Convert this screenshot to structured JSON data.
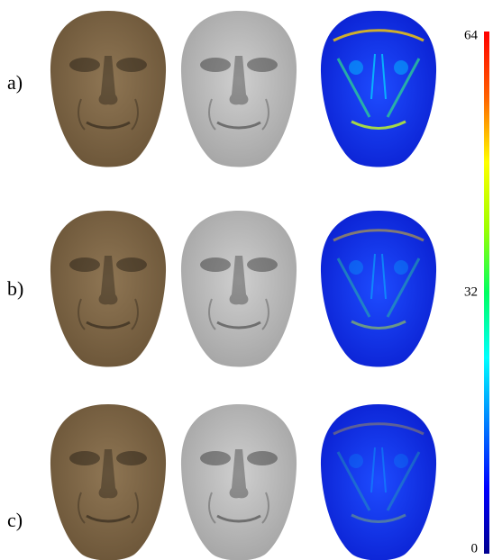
{
  "rows": [
    {
      "label": "a)"
    },
    {
      "label": "b)"
    },
    {
      "label": "c)"
    }
  ],
  "colorbar": {
    "lim": [
      0,
      64
    ],
    "ticks": [
      0,
      32,
      64
    ]
  }
}
